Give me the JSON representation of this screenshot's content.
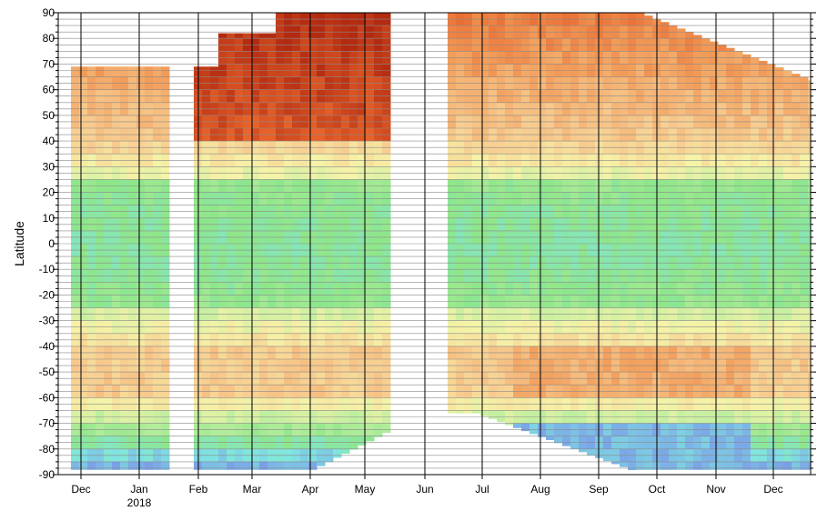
{
  "chart_data": {
    "type": "heatmap",
    "title": "",
    "xlabel": "",
    "ylabel": "Latitude",
    "ylim": [
      -90,
      90
    ],
    "y_ticks": [
      90,
      80,
      70,
      60,
      50,
      40,
      30,
      20,
      10,
      0,
      -10,
      -20,
      -30,
      -40,
      -50,
      -60,
      -70,
      -80,
      -90
    ],
    "x_ticks": [
      {
        "label": "Dec",
        "sub": ""
      },
      {
        "label": "Jan",
        "sub": "2018"
      },
      {
        "label": "Feb",
        "sub": ""
      },
      {
        "label": "Mar",
        "sub": ""
      },
      {
        "label": "Apr",
        "sub": ""
      },
      {
        "label": "May",
        "sub": ""
      },
      {
        "label": "Jun",
        "sub": ""
      },
      {
        "label": "Jul",
        "sub": ""
      },
      {
        "label": "Aug",
        "sub": ""
      },
      {
        "label": "Sep",
        "sub": ""
      },
      {
        "label": "Oct",
        "sub": ""
      },
      {
        "label": "Nov",
        "sub": ""
      },
      {
        "label": "Dec",
        "sub": ""
      }
    ],
    "month_boundaries": [
      "Dec",
      "Jan",
      "Feb",
      "Mar",
      "Apr",
      "May",
      "Jun",
      "Jul",
      "Aug",
      "Sep",
      "Oct",
      "Nov",
      "Dec"
    ],
    "grid": true,
    "colormap": [
      "#7aa0e8",
      "#80e6e0",
      "#8ee68a",
      "#bdeea0",
      "#f6f3a8",
      "#f7cc90",
      "#f29b58",
      "#e8632a",
      "#b22a10"
    ],
    "data_gaps": [
      {
        "from": "Jan",
        "to": "Feb"
      },
      {
        "from": "May",
        "to": "Jun"
      }
    ],
    "regions": [
      {
        "band": "north-polar",
        "description": "high values Feb–May, moderate elsewhere"
      },
      {
        "band": "tropics",
        "description": "low values"
      },
      {
        "band": "south-midlatitude",
        "description": "moderate-high values Jul–Nov"
      },
      {
        "band": "south-polar",
        "description": "lowest values Sep–Nov"
      }
    ]
  }
}
